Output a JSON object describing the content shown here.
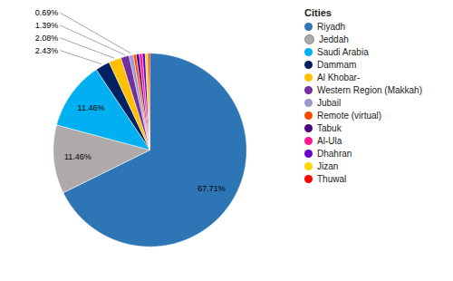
{
  "chart_data": {
    "type": "pie",
    "legend_title": "Cities",
    "categories": [
      "Riyadh",
      "Jeddah",
      "Saudi Arabia",
      "Dammam",
      "Al Khobar-",
      "Western Region (Makkah)",
      "Jubail",
      "Remote (virtual)",
      "Tabuk",
      "Al-Ula",
      "Dhahran",
      "Jizan",
      "Thuwal"
    ],
    "values": [
      67.71,
      11.46,
      11.46,
      2.43,
      2.08,
      1.39,
      0.69,
      0.5,
      0.5,
      0.5,
      0.5,
      0.5,
      0.28
    ],
    "value_labels": [
      "67.71%",
      "11.46%",
      "11.46%",
      "2.43%",
      "2.08%",
      "1.39%",
      "0.69%",
      null,
      null,
      null,
      null,
      null,
      null
    ],
    "colors": [
      "#2E75B6",
      "#AEAAAA",
      "#00B0F0",
      "#002060",
      "#FFC000",
      "#7030A0",
      "#9999CC",
      "#FF4B00",
      "#4B0082",
      "#FF1493",
      "#6600CC",
      "#FFD700",
      "#FF0000"
    ],
    "data_labels": true,
    "legend": "right"
  }
}
